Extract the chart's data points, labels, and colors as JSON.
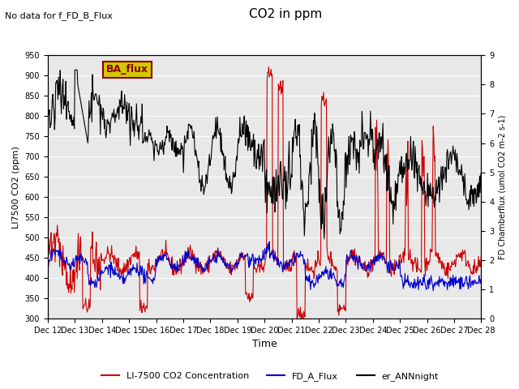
{
  "title": "CO2 in ppm",
  "top_left_text": "No data for f_FD_B_Flux",
  "legend_box_text": "BA_flux",
  "xlabel": "Time",
  "ylabel_left": "LI7500 CO2 (ppm)",
  "ylabel_right": "FD Chamberflux (umol CO2 m-2 s-1)",
  "ylim_left": [
    300,
    950
  ],
  "ylim_right": [
    0.0,
    9.0
  ],
  "yticks_left": [
    300,
    350,
    400,
    450,
    500,
    550,
    600,
    650,
    700,
    750,
    800,
    850,
    900,
    950
  ],
  "yticks_right": [
    0.0,
    1.0,
    2.0,
    3.0,
    4.0,
    5.0,
    6.0,
    7.0,
    8.0,
    9.0
  ],
  "xtick_labels": [
    "Dec 12",
    "Dec 13",
    "Dec 14",
    "Dec 15",
    "Dec 16",
    "Dec 17",
    "Dec 18",
    "Dec 19",
    "Dec 20",
    "Dec 21",
    "Dec 22",
    "Dec 23",
    "Dec 24",
    "Dec 25",
    "Dec 26",
    "Dec 27"
  ],
  "color_red": "#cc0000",
  "color_blue": "#0000cc",
  "color_black": "#000000",
  "legend_labels": [
    "LI-7500 CO2 Concentration",
    "FD_A_Flux",
    "er_ANNnight"
  ],
  "background_color": "#e8e8e8",
  "grid_color": "#ffffff"
}
